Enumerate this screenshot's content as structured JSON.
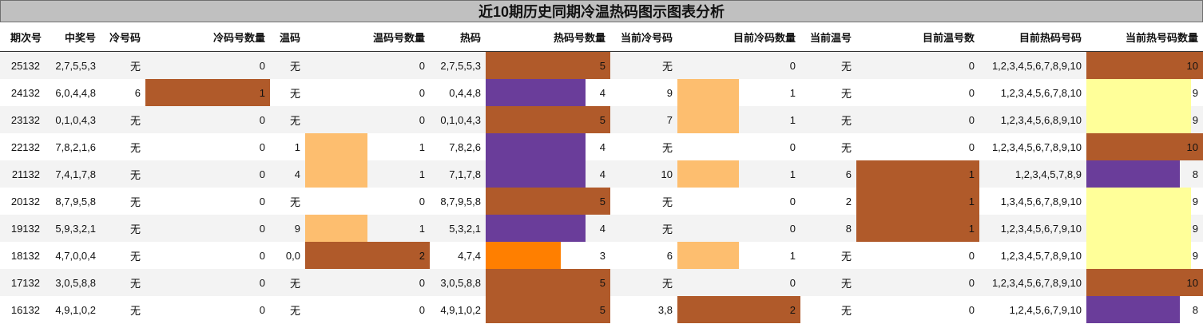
{
  "title": "近10期历史同期冷温热码图示图表分析",
  "headers": [
    "期次号",
    "中奖号",
    "冷号码",
    "冷码号数量",
    "温码",
    "温码号数量",
    "热码",
    "热码号数量",
    "当前冷号码",
    "目前冷码数量",
    "当前温号",
    "目前温号数",
    "目前热码号码",
    "当前热号码数量"
  ],
  "colors": {
    "brown": "#b05a2a",
    "purple": "#6a3d9a",
    "peach": "#fdbe6f",
    "yellow": "#ffff99",
    "orange": "#ff7f00"
  },
  "rows": [
    {
      "period": "25132",
      "winning": "2,7,5,5,3",
      "cold": "无",
      "cold_count": "0",
      "warm": "无",
      "warm_count": "0",
      "hot": "2,7,5,5,3",
      "hot_count": "5",
      "cur_cold": "无",
      "cur_cold_count": "0",
      "cur_warm": "无",
      "cur_warm_count": "0",
      "cur_hot": "1,2,3,4,5,6,7,8,9,10",
      "cur_hot_count": "10"
    },
    {
      "period": "24132",
      "winning": "6,0,4,4,8",
      "cold": "6",
      "cold_count": "1",
      "warm": "无",
      "warm_count": "0",
      "hot": "0,4,4,8",
      "hot_count": "4",
      "cur_cold": "9",
      "cur_cold_count": "1",
      "cur_warm": "无",
      "cur_warm_count": "0",
      "cur_hot": "1,2,3,4,5,6,7,8,10",
      "cur_hot_count": "9"
    },
    {
      "period": "23132",
      "winning": "0,1,0,4,3",
      "cold": "无",
      "cold_count": "0",
      "warm": "无",
      "warm_count": "0",
      "hot": "0,1,0,4,3",
      "hot_count": "5",
      "cur_cold": "7",
      "cur_cold_count": "1",
      "cur_warm": "无",
      "cur_warm_count": "0",
      "cur_hot": "1,2,3,4,5,6,8,9,10",
      "cur_hot_count": "9"
    },
    {
      "period": "22132",
      "winning": "7,8,2,1,6",
      "cold": "无",
      "cold_count": "0",
      "warm": "1",
      "warm_count": "1",
      "hot": "7,8,2,6",
      "hot_count": "4",
      "cur_cold": "无",
      "cur_cold_count": "0",
      "cur_warm": "无",
      "cur_warm_count": "0",
      "cur_hot": "1,2,3,4,5,6,7,8,9,10",
      "cur_hot_count": "10"
    },
    {
      "period": "21132",
      "winning": "7,4,1,7,8",
      "cold": "无",
      "cold_count": "0",
      "warm": "4",
      "warm_count": "1",
      "hot": "7,1,7,8",
      "hot_count": "4",
      "cur_cold": "10",
      "cur_cold_count": "1",
      "cur_warm": "6",
      "cur_warm_count": "1",
      "cur_hot": "1,2,3,4,5,7,8,9",
      "cur_hot_count": "8"
    },
    {
      "period": "20132",
      "winning": "8,7,9,5,8",
      "cold": "无",
      "cold_count": "0",
      "warm": "无",
      "warm_count": "0",
      "hot": "8,7,9,5,8",
      "hot_count": "5",
      "cur_cold": "无",
      "cur_cold_count": "0",
      "cur_warm": "2",
      "cur_warm_count": "1",
      "cur_hot": "1,3,4,5,6,7,8,9,10",
      "cur_hot_count": "9"
    },
    {
      "period": "19132",
      "winning": "5,9,3,2,1",
      "cold": "无",
      "cold_count": "0",
      "warm": "9",
      "warm_count": "1",
      "hot": "5,3,2,1",
      "hot_count": "4",
      "cur_cold": "无",
      "cur_cold_count": "0",
      "cur_warm": "8",
      "cur_warm_count": "1",
      "cur_hot": "1,2,3,4,5,6,7,9,10",
      "cur_hot_count": "9"
    },
    {
      "period": "18132",
      "winning": "4,7,0,0,4",
      "cold": "无",
      "cold_count": "0",
      "warm": "0,0",
      "warm_count": "2",
      "hot": "4,7,4",
      "hot_count": "3",
      "cur_cold": "6",
      "cur_cold_count": "1",
      "cur_warm": "无",
      "cur_warm_count": "0",
      "cur_hot": "1,2,3,4,5,7,8,9,10",
      "cur_hot_count": "9"
    },
    {
      "period": "17132",
      "winning": "3,0,5,8,8",
      "cold": "无",
      "cold_count": "0",
      "warm": "无",
      "warm_count": "0",
      "hot": "3,0,5,8,8",
      "hot_count": "5",
      "cur_cold": "无",
      "cur_cold_count": "0",
      "cur_warm": "无",
      "cur_warm_count": "0",
      "cur_hot": "1,2,3,4,5,6,7,8,9,10",
      "cur_hot_count": "10"
    },
    {
      "period": "16132",
      "winning": "4,9,1,0,2",
      "cold": "无",
      "cold_count": "0",
      "warm": "无",
      "warm_count": "0",
      "hot": "4,9,1,0,2",
      "hot_count": "5",
      "cur_cold": "3,8",
      "cur_cold_count": "2",
      "cur_warm": "无",
      "cur_warm_count": "0",
      "cur_hot": "1,2,4,5,6,7,9,10",
      "cur_hot_count": "8"
    }
  ]
}
